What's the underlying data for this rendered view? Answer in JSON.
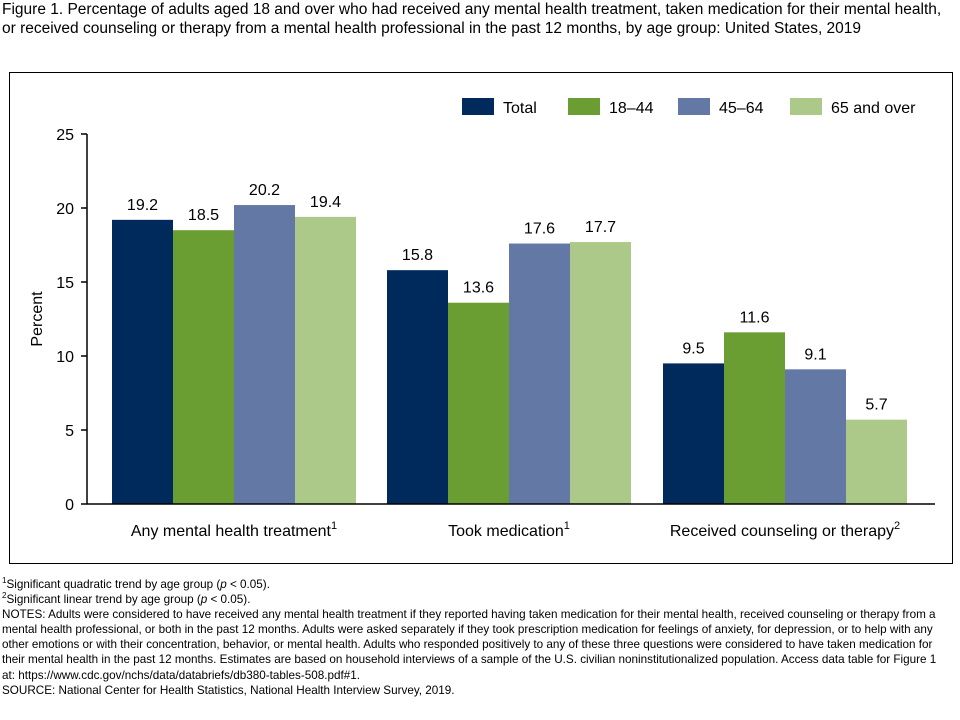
{
  "title": "Figure 1. Percentage of adults aged 18 and over who had received any mental health treatment, taken medication for their mental health, or received counseling or therapy from a mental health professional in the past 12 months, by age group: United States, 2019",
  "colors": {
    "Total": "#002a5c",
    "18–44": "#6b9e32",
    "45–64": "#6478a6",
    "65 and over": "#adc98a"
  },
  "chart_data": {
    "type": "bar",
    "categories": [
      "Any mental health treatment",
      "Took medication",
      "Received counseling or therapy"
    ],
    "category_superscripts": [
      "1",
      "1",
      "2"
    ],
    "series": [
      {
        "name": "Total",
        "values": [
          19.2,
          15.8,
          9.5
        ]
      },
      {
        "name": "18–44",
        "values": [
          18.5,
          13.6,
          11.6
        ]
      },
      {
        "name": "45–64",
        "values": [
          20.2,
          17.6,
          9.1
        ]
      },
      {
        "name": "65 and over",
        "values": [
          19.4,
          17.7,
          5.7
        ]
      }
    ],
    "ylabel": "Percent",
    "xlabel": "",
    "ylim": [
      0,
      25
    ],
    "yticks": [
      0,
      5,
      10,
      15,
      20,
      25
    ],
    "legend_position": "top-right",
    "grid": false
  },
  "notes": {
    "note1_sup": "1",
    "note1_a": "Significant quadratic trend by age group (",
    "note1_p": "p",
    "note1_b": " < 0.05).",
    "note2_sup": "2",
    "note2_a": "Significant linear trend by age group (",
    "note2_p": "p",
    "note2_b": " < 0.05).",
    "notes_text": "NOTES: Adults were considered to have received any mental health treatment if they reported having taken medication for their mental health, received counseling or therapy from a mental health professional, or both in the past 12 months. Adults were asked separately if they took prescription medication for feelings of anxiety, for depression, or to help with any other emotions or with their concentration, behavior, or mental health. Adults who responded positively to any of these three questions were considered to have taken medication for their mental health in the past 12 months. Estimates are based on household interviews of a sample of the U.S. civilian noninstitutionalized population. Access data table for Figure 1 at: https://www.cdc.gov/nchs/data/databriefs/db380-tables-508.pdf#1.",
    "source": "SOURCE: National Center for Health Statistics, National Health Interview Survey, 2019."
  }
}
